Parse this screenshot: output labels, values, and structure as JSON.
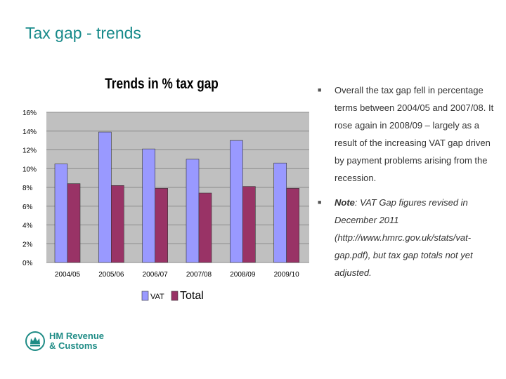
{
  "slide": {
    "title": "Tax gap - trends"
  },
  "chart_data": {
    "type": "bar",
    "title": "Trends in % tax gap",
    "categories": [
      "2004/05",
      "2005/06",
      "2006/07",
      "2007/08",
      "2008/09",
      "2009/10"
    ],
    "series": [
      {
        "name": "VAT",
        "values": [
          10.5,
          13.9,
          12.1,
          11.0,
          13.0,
          10.6
        ],
        "color": "#9999ff"
      },
      {
        "name": "Total",
        "values": [
          8.4,
          8.2,
          7.9,
          7.4,
          8.1,
          7.9
        ],
        "color": "#993366"
      }
    ],
    "yticks": [
      "0%",
      "2%",
      "4%",
      "6%",
      "8%",
      "10%",
      "12%",
      "14%",
      "16%"
    ],
    "ylim": [
      0,
      16
    ],
    "grid": true,
    "plot_background": "#c0c0c0",
    "legend_position": "bottom"
  },
  "bullets": [
    {
      "text": "Overall the tax gap fell in percentage terms between 2004/05 and 2007/08.  It rose again in 2008/09 – largely as a result of the increasing VAT gap driven by payment problems arising from the recession."
    },
    {
      "note_label": "Note",
      "note_text": ": VAT Gap figures revised in December 2011 (http://www.hmrc.gov.uk/stats/vat-gap.pdf), but tax gap totals not yet adjusted."
    }
  ],
  "logo": {
    "line1": "HM Revenue",
    "line2": "& Customs",
    "icon": "crown-icon",
    "color": "#1f8c86"
  }
}
